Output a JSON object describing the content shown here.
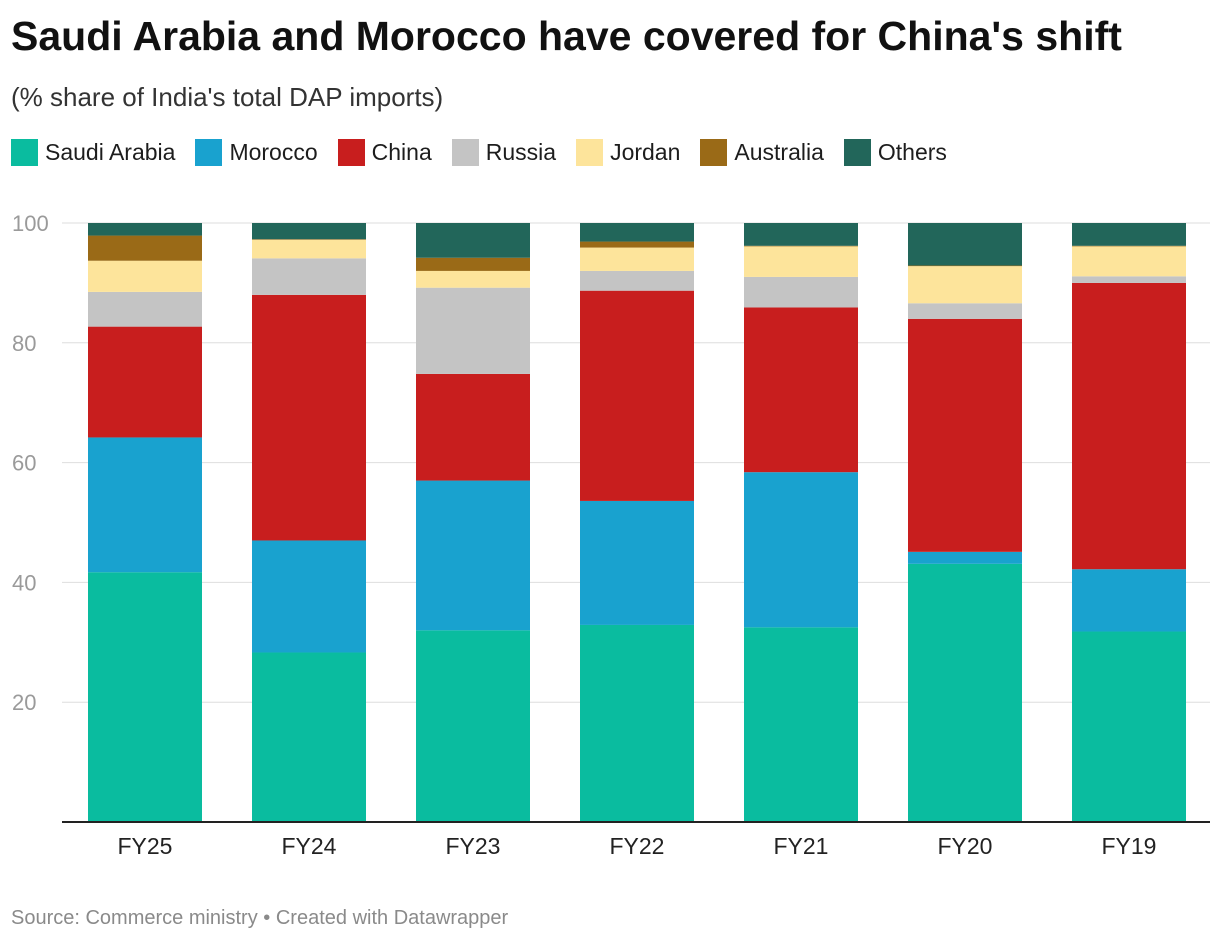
{
  "header": {
    "title": "Saudi Arabia and Morocco have covered for China's shift",
    "subtitle": "(% share of India's total DAP imports)"
  },
  "footer": {
    "source": "Source: Commerce ministry",
    "separator": "•",
    "credit": "Created with Datawrapper"
  },
  "legend": [
    {
      "label": "Saudi Arabia",
      "color": "#0abc9f"
    },
    {
      "label": "Morocco",
      "color": "#19a2cf"
    },
    {
      "label": "China",
      "color": "#c81e1e"
    },
    {
      "label": "Russia",
      "color": "#c4c4c4"
    },
    {
      "label": "Jordan",
      "color": "#fde49b"
    },
    {
      "label": "Australia",
      "color": "#9a6a17"
    },
    {
      "label": "Others",
      "color": "#22665a"
    }
  ],
  "chart_data": {
    "type": "bar",
    "stacked": true,
    "title": "Saudi Arabia and Morocco have covered for China's shift",
    "subtitle": "(% share of India's total DAP imports)",
    "xlabel": "",
    "ylabel": "",
    "ylim": [
      0,
      100
    ],
    "yticks": [
      20,
      40,
      60,
      80,
      100
    ],
    "grid": true,
    "legend_position": "top",
    "categories": [
      "FY25",
      "FY24",
      "FY23",
      "FY22",
      "FY21",
      "FY20",
      "FY19"
    ],
    "series": [
      {
        "name": "Saudi Arabia",
        "color": "#0abc9f",
        "values": [
          41.7,
          28.3,
          32.0,
          32.9,
          32.5,
          43.1,
          31.8
        ]
      },
      {
        "name": "Morocco",
        "color": "#19a2cf",
        "values": [
          22.5,
          18.7,
          25.0,
          20.7,
          25.9,
          2.0,
          10.4
        ]
      },
      {
        "name": "China",
        "color": "#c81e1e",
        "values": [
          18.5,
          41.0,
          17.8,
          35.1,
          27.5,
          38.9,
          47.8
        ]
      },
      {
        "name": "Russia",
        "color": "#c4c4c4",
        "values": [
          5.8,
          6.1,
          14.4,
          3.3,
          5.1,
          2.6,
          1.1
        ]
      },
      {
        "name": "Jordan",
        "color": "#fde49b",
        "values": [
          5.2,
          3.1,
          2.8,
          3.9,
          5.1,
          6.2,
          5.0
        ]
      },
      {
        "name": "Australia",
        "color": "#9a6a17",
        "values": [
          4.2,
          0.1,
          2.2,
          1.0,
          0.1,
          0.1,
          0.1
        ]
      },
      {
        "name": "Others",
        "color": "#22665a",
        "values": [
          2.1,
          2.7,
          5.8,
          3.1,
          3.8,
          7.1,
          3.8
        ]
      }
    ]
  }
}
